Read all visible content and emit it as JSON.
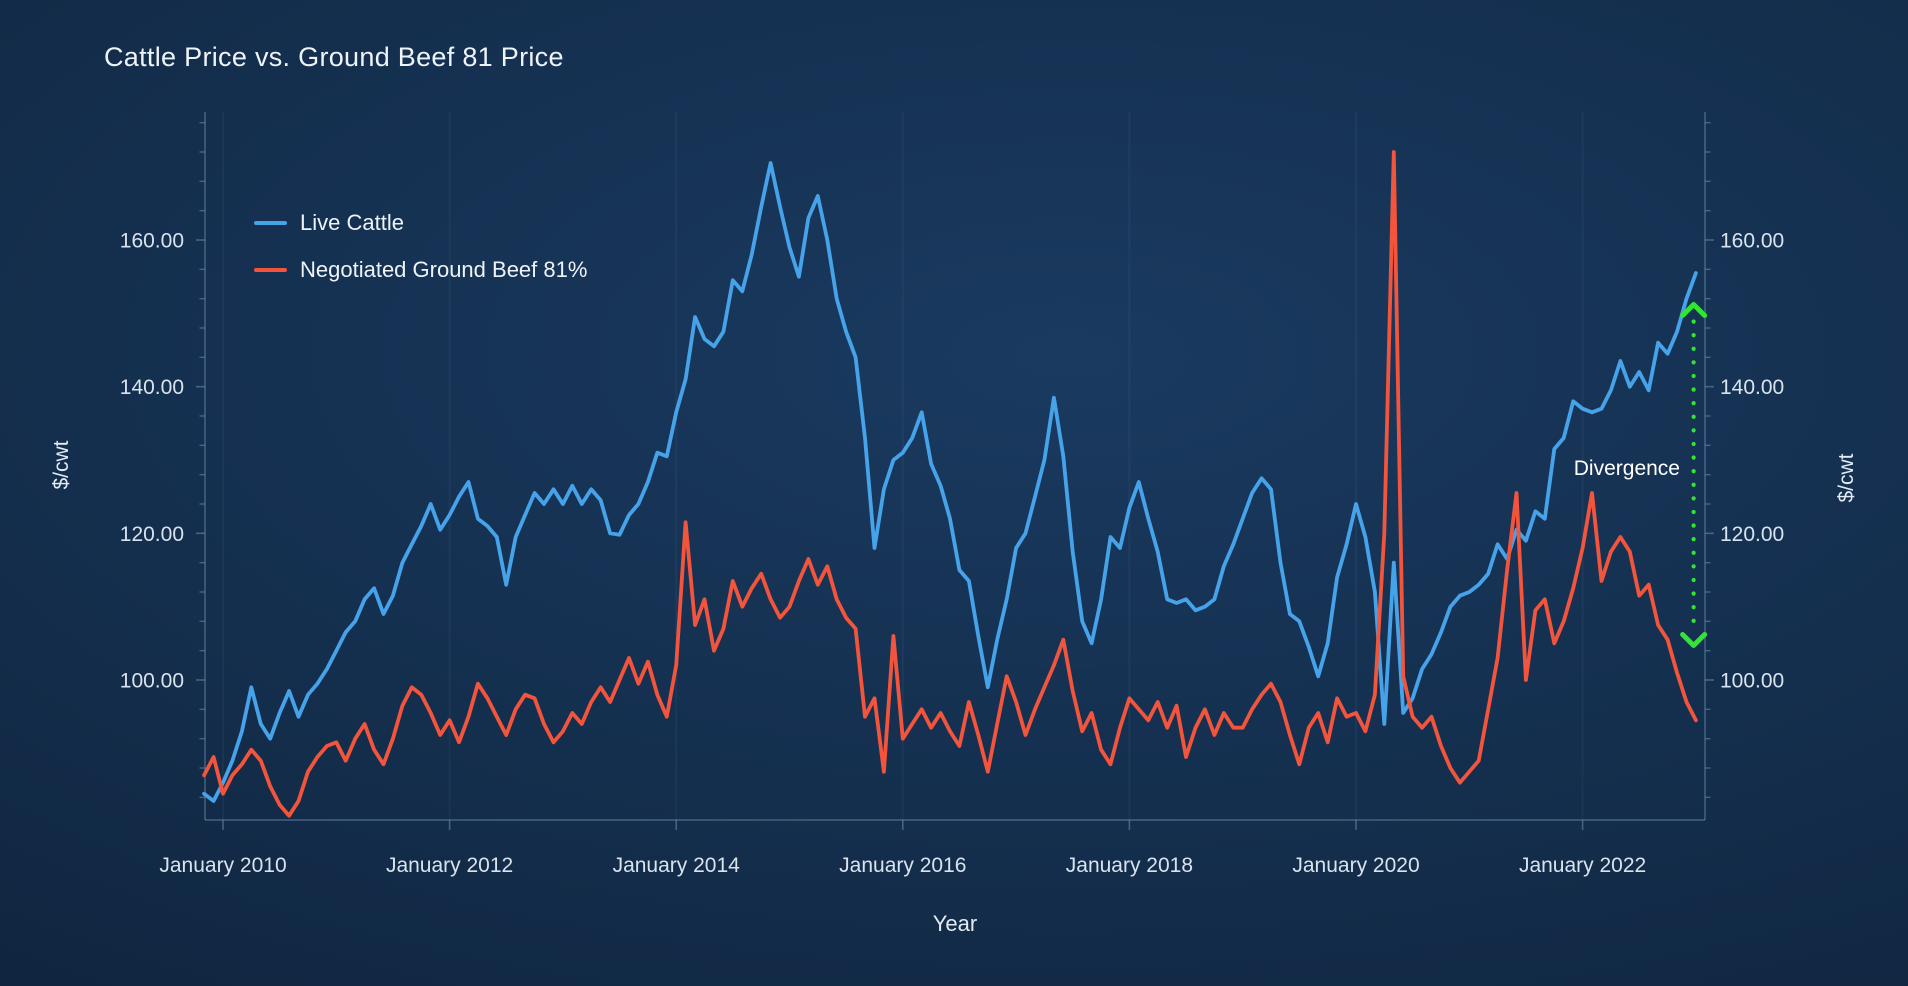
{
  "title": "Cattle Price vs. Ground Beef 81 Price",
  "legend": {
    "position": "top-left",
    "items": [
      {
        "label": "Live Cattle",
        "color": "#46a2e9"
      },
      {
        "label": "Negotiated Ground Beef 81%",
        "color": "#f2543c"
      }
    ]
  },
  "axes": {
    "x_title": "Year",
    "y_left_title": "$/cwt",
    "y_right_title": "$/cwt"
  },
  "annotation": {
    "label": "Divergence",
    "x_year": 2022.98,
    "top_value": 151.2,
    "bottom_value": 104.7,
    "color": "#32e532"
  },
  "colors": {
    "background_dark": "#0b1d31",
    "background_light": "#1a3a60",
    "axis": "#5d7d9c",
    "tick_text": "#d9e3ee",
    "title_text": "#eef3f9"
  },
  "chart_data": {
    "type": "line",
    "title": "Cattle Price vs. Ground Beef 81 Price",
    "xlabel": "Year",
    "ylabel": "$/cwt",
    "x_start_year": 2009.8333,
    "x_step_months": 1,
    "x_range_years": [
      2009.83,
      2023.0
    ],
    "grid": "faint-vertical-at-major-ticks",
    "x_axis": {
      "ticks": [
        {
          "year": 2010,
          "label": "January 2010"
        },
        {
          "year": 2012,
          "label": "January 2012"
        },
        {
          "year": 2014,
          "label": "January 2014"
        },
        {
          "year": 2016,
          "label": "January 2016"
        },
        {
          "year": 2018,
          "label": "January 2018"
        },
        {
          "year": 2020,
          "label": "January 2020"
        },
        {
          "year": 2022,
          "label": "January 2022"
        }
      ]
    },
    "y_axis": {
      "unit": "$/cwt",
      "shown_range": [
        81,
        177
      ],
      "major_ticks": [
        {
          "value": 100,
          "label": "100.00"
        },
        {
          "value": 120,
          "label": "120.00"
        },
        {
          "value": 140,
          "label": "140.00"
        },
        {
          "value": 160,
          "label": "160.00"
        }
      ],
      "minor_tick_step": 4,
      "minor_tick_range": [
        84,
        176
      ],
      "mirrored_right_axis": true
    },
    "series": [
      {
        "name": "Live Cattle",
        "color": "#46a2e9",
        "values": [
          84.5,
          83.5,
          86,
          89,
          93,
          99,
          94,
          92,
          95.5,
          98.5,
          95,
          98,
          99.5,
          101.5,
          104,
          106.5,
          108,
          111,
          112.5,
          109,
          111.5,
          116,
          118.5,
          121,
          124,
          120.5,
          122.5,
          125,
          127,
          122,
          121,
          119.5,
          113,
          119.5,
          122.5,
          125.5,
          124,
          126,
          124,
          126.5,
          124,
          126,
          124.5,
          120,
          119.8,
          122.5,
          124,
          127,
          131,
          130.5,
          136.5,
          141,
          149.5,
          146.5,
          145.5,
          147.5,
          154.5,
          153,
          158,
          164.5,
          170.5,
          164.5,
          159,
          155,
          163,
          166,
          160,
          152,
          147.5,
          144,
          133,
          118,
          126,
          130,
          131,
          133,
          136.5,
          129.5,
          126.5,
          122,
          115,
          113.5,
          106,
          99,
          105.5,
          111,
          118,
          120,
          125,
          130,
          138.5,
          130.5,
          117.5,
          108,
          105,
          111,
          119.5,
          118,
          123.5,
          127,
          122,
          117.5,
          111,
          110.5,
          111,
          109.5,
          110,
          111,
          115.5,
          118.5,
          122,
          125.5,
          127.5,
          126,
          116,
          109,
          108,
          104.5,
          100.5,
          105,
          114,
          118.5,
          124,
          119.5,
          112,
          94,
          116,
          95.5,
          97.5,
          101.5,
          103.5,
          106.5,
          110,
          111.5,
          112,
          113,
          114.5,
          118.5,
          116.5,
          120.5,
          119,
          123,
          122,
          131.5,
          133,
          138,
          137,
          136.5,
          137,
          139.5,
          143.5,
          140,
          142,
          139.5,
          146,
          144.5,
          147.5,
          152,
          155.5
        ]
      },
      {
        "name": "Negotiated Ground Beef 81%",
        "color": "#f2543c",
        "values": [
          87,
          89.5,
          84.5,
          87,
          88.5,
          90.5,
          89,
          85.5,
          83,
          81.5,
          83.5,
          87.5,
          89.5,
          91,
          91.5,
          89,
          92,
          94,
          90.5,
          88.5,
          92,
          96.5,
          99,
          98,
          95.5,
          92.5,
          94.5,
          91.5,
          95,
          99.5,
          97.5,
          95,
          92.5,
          96,
          98,
          97.5,
          94,
          91.5,
          93,
          95.5,
          94,
          97,
          99,
          97,
          100,
          103,
          99.5,
          102.5,
          98,
          95,
          102,
          121.5,
          107.5,
          111,
          104,
          107,
          113.5,
          110,
          112.5,
          114.5,
          111,
          108.5,
          110,
          113.5,
          116.5,
          113,
          115.5,
          111,
          108.5,
          107,
          95,
          97.5,
          87.5,
          106,
          92,
          94,
          96,
          93.5,
          95.5,
          93,
          91,
          97,
          92.5,
          87.5,
          94,
          100.5,
          97,
          92.5,
          96,
          99,
          102,
          105.5,
          98.5,
          93,
          95.5,
          90.5,
          88.5,
          93.5,
          97.5,
          96,
          94.5,
          97,
          93.5,
          96.5,
          89.5,
          93.5,
          96,
          92.5,
          95.5,
          93.5,
          93.5,
          96,
          98,
          99.5,
          97,
          92.5,
          88.5,
          93.5,
          95.5,
          91.5,
          97.5,
          95,
          95.5,
          93,
          98,
          120,
          172,
          100.5,
          95,
          93.5,
          95,
          91,
          88,
          86,
          87.5,
          89,
          96,
          103,
          115,
          125.5,
          100,
          109.5,
          111,
          105,
          108,
          112.5,
          118,
          125.5,
          113.5,
          117.5,
          119.5,
          117.5,
          111.5,
          113,
          107.5,
          105.5,
          101,
          97,
          94.5
        ]
      }
    ]
  }
}
